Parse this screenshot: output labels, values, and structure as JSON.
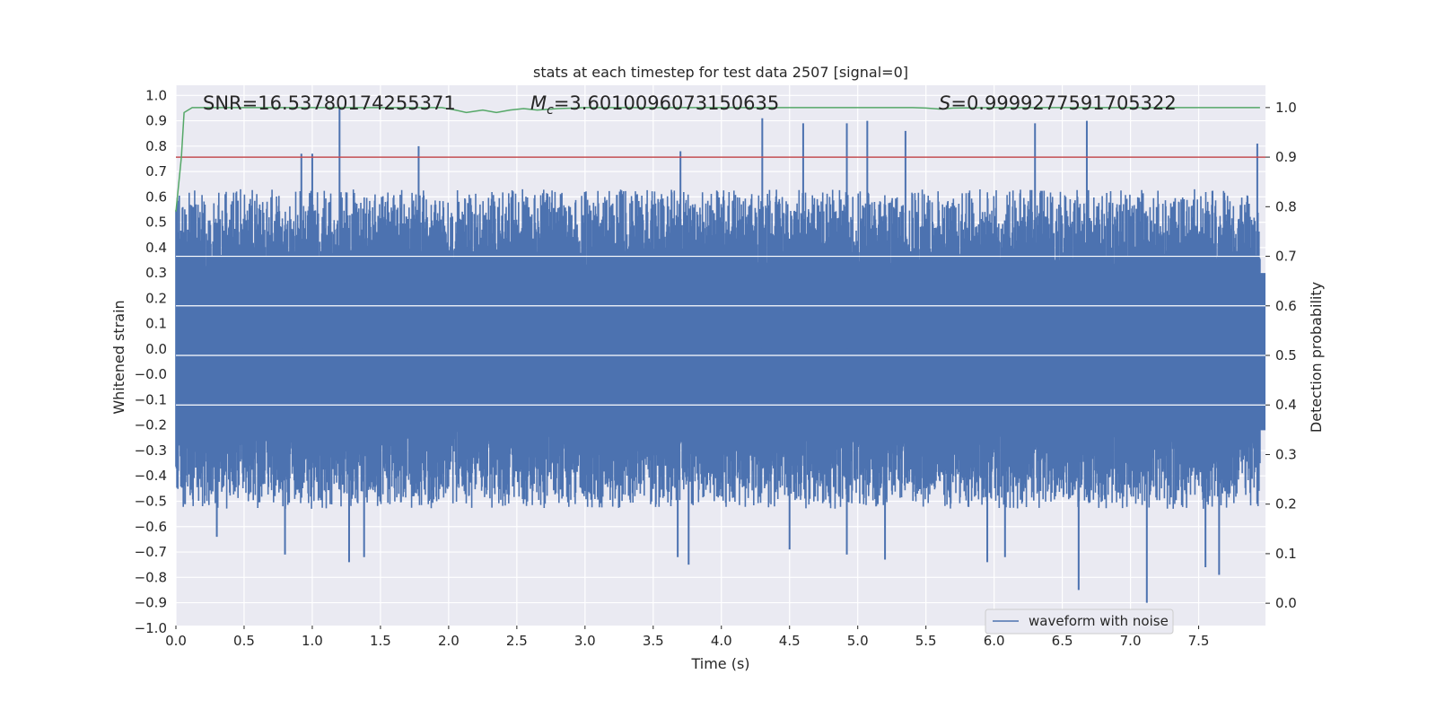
{
  "chart_data": {
    "type": "line",
    "title": "stats at each timestep for test data 2507 [signal=0]",
    "xlabel": "Time (s)",
    "ylabel": "Whitened strain",
    "y2label": "Detection probability",
    "xlim": [
      0.0,
      7.99
    ],
    "ylim": [
      -1.09,
      1.04
    ],
    "y2lim": [
      -0.045,
      1.045
    ],
    "x_ticks": [
      "0.0",
      "0.5",
      "1.0",
      "1.5",
      "2.0",
      "2.5",
      "3.0",
      "3.5",
      "4.0",
      "4.5",
      "5.0",
      "5.5",
      "6.0",
      "6.5",
      "7.0",
      "7.5"
    ],
    "y_ticks": [
      "1.0",
      "0.9",
      "0.8",
      "0.7",
      "0.6",
      "0.5",
      "0.4",
      "0.3",
      "0.2",
      "0.1",
      "0.0",
      "−0.0",
      "−0.1",
      "−0.2",
      "−0.3",
      "−0.4",
      "−0.5",
      "−0.6",
      "−0.7",
      "−0.8",
      "−0.9",
      "−1.0"
    ],
    "y2_ticks": [
      "1.0",
      "0.9",
      "0.8",
      "0.7",
      "0.6",
      "0.5",
      "0.4",
      "0.3",
      "0.2",
      "0.1",
      "0.0"
    ],
    "grid": true,
    "annotations": {
      "snr": "SNR=16.53780174255371",
      "mc_symbol": "M",
      "mc_sub": "c",
      "mc_value": "=3.6010096073150635",
      "s_symbol": "S",
      "s_value": "=0.9999277591705322"
    },
    "legend": {
      "position": "bottom-right",
      "entries": [
        "waveform with noise"
      ]
    },
    "threshold": {
      "axis": "right",
      "value": 0.9,
      "color": "#c44e52"
    },
    "series": [
      {
        "name": "waveform with noise",
        "axis": "left",
        "color": "#4c72b0",
        "noise": {
          "t_start": 0.0,
          "t_end": 7.95,
          "samples": 2200,
          "typical_envelope": 0.42
        },
        "spikes": [
          {
            "t": 0.92,
            "y": 0.77
          },
          {
            "t": 1.0,
            "y": 0.77
          },
          {
            "t": 1.2,
            "y": 0.95
          },
          {
            "t": 1.78,
            "y": 0.8
          },
          {
            "t": 3.7,
            "y": 0.78
          },
          {
            "t": 4.3,
            "y": 0.91
          },
          {
            "t": 4.6,
            "y": 0.89
          },
          {
            "t": 4.92,
            "y": 0.89
          },
          {
            "t": 5.07,
            "y": 0.9
          },
          {
            "t": 5.35,
            "y": 0.86
          },
          {
            "t": 6.3,
            "y": 0.89
          },
          {
            "t": 6.68,
            "y": 0.9
          },
          {
            "t": 7.93,
            "y": 0.81
          },
          {
            "t": 1.27,
            "y": -0.84
          },
          {
            "t": 1.38,
            "y": -0.82
          },
          {
            "t": 3.68,
            "y": -0.82
          },
          {
            "t": 3.76,
            "y": -0.85
          },
          {
            "t": 4.5,
            "y": -0.79
          },
          {
            "t": 4.92,
            "y": -0.81
          },
          {
            "t": 5.2,
            "y": -0.83
          },
          {
            "t": 5.95,
            "y": -0.84
          },
          {
            "t": 6.08,
            "y": -0.82
          },
          {
            "t": 6.62,
            "y": -0.95
          },
          {
            "t": 7.12,
            "y": -1.0
          },
          {
            "t": 7.55,
            "y": -0.86
          },
          {
            "t": 7.65,
            "y": -0.89
          },
          {
            "t": 0.8,
            "y": -0.81
          },
          {
            "t": 0.3,
            "y": -0.74
          }
        ]
      },
      {
        "name": "",
        "axis": "right",
        "color": "#55a868",
        "x": [
          0.0,
          0.04,
          0.06,
          0.12,
          0.3,
          1.0,
          1.5,
          1.95,
          2.05,
          2.13,
          2.25,
          2.35,
          2.45,
          2.55,
          2.65,
          2.8,
          3.0,
          4.0,
          5.0,
          5.4,
          5.5,
          5.6,
          5.7,
          6.0,
          7.0,
          7.95
        ],
        "y": [
          0.79,
          0.9,
          0.99,
          1.0,
          1.0,
          1.0,
          1.0,
          1.0,
          0.995,
          0.99,
          0.995,
          0.99,
          0.995,
          0.998,
          0.995,
          0.998,
          1.0,
          1.0,
          1.0,
          1.0,
          0.999,
          0.997,
          0.999,
          1.0,
          1.0,
          1.0
        ]
      }
    ]
  }
}
